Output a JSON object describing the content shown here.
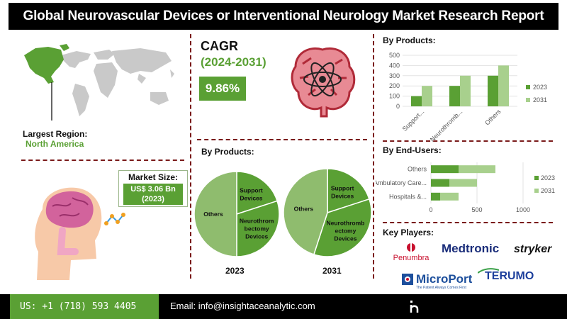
{
  "title": "Global Neurovascular Devices or Interventional Neurology Market Research Report",
  "region": {
    "label": "Largest Region:",
    "value": "North America"
  },
  "market_size": {
    "label": "Market Size:",
    "line1": "US$ 3.06 Bn",
    "line2": "(2023)"
  },
  "cagr": {
    "label": "CAGR",
    "years": "(2024-2031)",
    "value": "9.86%"
  },
  "by_products_bar_title": "By Products:",
  "by_end_users_title": "By End-Users:",
  "by_products_pie_title": "By Products:",
  "key_players_title": "Key Players:",
  "logos": [
    "Penumbra",
    "Medtronic",
    "stryker",
    "MicroPort",
    "TERUMO"
  ],
  "microport_tagline": "The Patient Always Comes First",
  "footer": {
    "phone": "US: +1 (718) 593 4405",
    "email": "Email: info@insightaceanalytic.com"
  },
  "colors": {
    "accent": "#5aa034",
    "series_2023": "#5aa034",
    "series_2031": "#a8d08d",
    "dark": "#000000"
  },
  "chart_data": [
    {
      "type": "bar",
      "title": "By Products:",
      "categories": [
        "Support...",
        "Neurothromb...",
        "Others"
      ],
      "series": [
        {
          "name": "2023",
          "values": [
            100,
            200,
            300
          ]
        },
        {
          "name": "2031",
          "values": [
            200,
            300,
            400
          ]
        }
      ],
      "yticks": [
        "0",
        "100",
        "200",
        "300",
        "400",
        "500"
      ],
      "ylim": [
        0,
        500
      ],
      "legend": "right"
    },
    {
      "type": "bar",
      "orientation": "horizontal",
      "title": "By End-Users:",
      "categories": [
        "Hospitals &...",
        "Ambulatory Care...",
        "Others"
      ],
      "series": [
        {
          "name": "2023",
          "values": [
            100,
            200,
            300
          ]
        },
        {
          "name": "2031",
          "values": [
            200,
            300,
            400
          ]
        }
      ],
      "xticks": [
        "0",
        "500",
        "1000"
      ],
      "xlim": [
        0,
        1000
      ],
      "legend": "right"
    },
    {
      "type": "pie",
      "title": "2023",
      "slices": [
        {
          "label": "Support Devices",
          "value": 20
        },
        {
          "label": "Neurothrombectomy Devices",
          "value": 30
        },
        {
          "label": "Others",
          "value": 50
        }
      ],
      "label_lines": [
        [
          "Support",
          "Devices"
        ],
        [
          "Neurothrom",
          "bectomy",
          "Devices"
        ],
        [
          "Others"
        ]
      ]
    },
    {
      "type": "pie",
      "title": "2031",
      "slices": [
        {
          "label": "Support Devices",
          "value": 20
        },
        {
          "label": "Neurothrombectomy Devices",
          "value": 35
        },
        {
          "label": "Others",
          "value": 45
        }
      ],
      "label_lines": [
        [
          "Support",
          "Devices"
        ],
        [
          "Neurothromb",
          "ectomy",
          "Devices"
        ],
        [
          "Others"
        ]
      ]
    }
  ]
}
